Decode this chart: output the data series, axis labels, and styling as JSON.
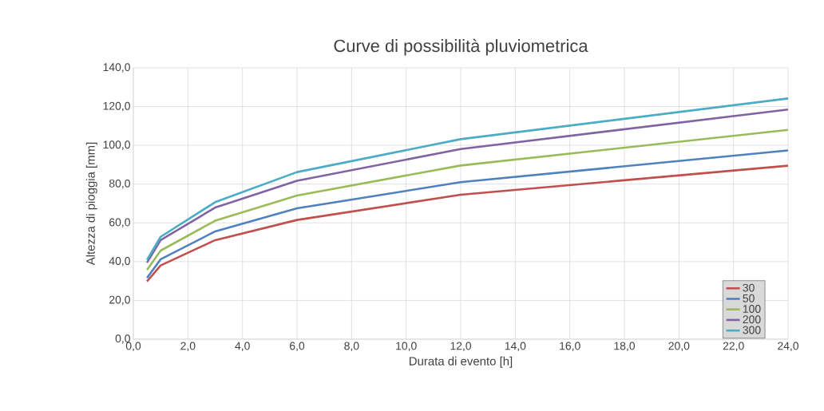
{
  "chart_data": {
    "type": "line",
    "title": "Curve di possibilità pluviometrica",
    "xlabel": "Durata di evento [h]",
    "ylabel": "Altezza di pioggia [mm]",
    "x": [
      0.5,
      1,
      3,
      6,
      12,
      24
    ],
    "series": [
      {
        "name": "30",
        "color": "#c0504d",
        "values": [
          29.8,
          38.0,
          51.1,
          61.5,
          74.5,
          89.5
        ]
      },
      {
        "name": "50",
        "color": "#4f81bd",
        "values": [
          31.6,
          41.2,
          55.6,
          67.5,
          81.0,
          97.4
        ]
      },
      {
        "name": "100",
        "color": "#9bbb59",
        "values": [
          35.7,
          45.7,
          61.1,
          74.1,
          89.6,
          108.0
        ]
      },
      {
        "name": "200",
        "color": "#8064a2",
        "values": [
          39.5,
          51.1,
          67.9,
          81.7,
          98.1,
          118.5
        ]
      },
      {
        "name": "300",
        "color": "#4bacc6",
        "values": [
          40.9,
          52.8,
          70.7,
          86.2,
          103.2,
          124.2
        ]
      }
    ],
    "xlim": [
      0,
      24
    ],
    "xticks": [
      {
        "value": 0,
        "label": "0,0"
      },
      {
        "value": 2,
        "label": "2,0"
      },
      {
        "value": 4,
        "label": "4,0"
      },
      {
        "value": 6,
        "label": "6,0"
      },
      {
        "value": 8,
        "label": "8,0"
      },
      {
        "value": 10,
        "label": "10,0"
      },
      {
        "value": 12,
        "label": "12,0"
      },
      {
        "value": 14,
        "label": "14,0"
      },
      {
        "value": 16,
        "label": "16,0"
      },
      {
        "value": 18,
        "label": "18,0"
      },
      {
        "value": 20,
        "label": "20,0"
      },
      {
        "value": 22,
        "label": "22,0"
      },
      {
        "value": 24,
        "label": "24,0"
      }
    ],
    "ylim": [
      0,
      140
    ],
    "yticks": [
      {
        "value": 0,
        "label": "0,0"
      },
      {
        "value": 20,
        "label": "20,0"
      },
      {
        "value": 40,
        "label": "40,0"
      },
      {
        "value": 60,
        "label": "60,0"
      },
      {
        "value": 80,
        "label": "80,0"
      },
      {
        "value": 100,
        "label": "100,0"
      },
      {
        "value": 120,
        "label": "120,0"
      },
      {
        "value": 140,
        "label": "140,0"
      }
    ],
    "grid": true,
    "legend": "bottom right",
    "marker": "none",
    "line_style": "solid"
  }
}
